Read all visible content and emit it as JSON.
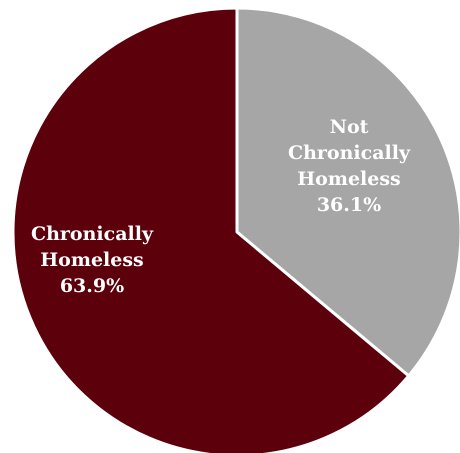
{
  "chart_data": {
    "type": "pie",
    "start_angle_deg": 0,
    "direction": "clockwise",
    "legend": "none",
    "slices": [
      {
        "label_lines": [
          "Not",
          "Chronically",
          "Homeless"
        ],
        "value": 36.1,
        "value_label": "36.1%",
        "color": "#a6a6a6",
        "label_color": "#ffffff"
      },
      {
        "label_lines": [
          "Chronically",
          "Homeless"
        ],
        "value": 63.9,
        "value_label": "63.9%",
        "color": "#5c000b",
        "label_color": "#ffffff"
      }
    ]
  }
}
